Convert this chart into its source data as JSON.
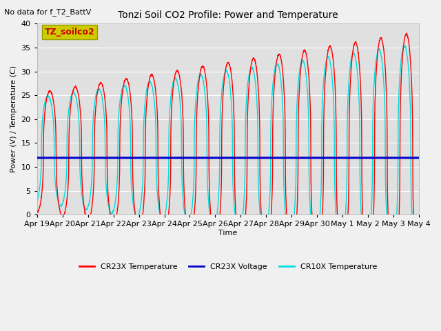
{
  "title": "Tonzi Soil CO2 Profile: Power and Temperature",
  "subtitle": "No data for f_T2_BattV",
  "ylabel": "Power (V) / Temperature (C)",
  "xlabel": "Time",
  "ylim": [
    0,
    40
  ],
  "x_tick_labels": [
    "Apr 19",
    "Apr 20",
    "Apr 21",
    "Apr 22",
    "Apr 23",
    "Apr 24",
    "Apr 25",
    "Apr 26",
    "Apr 27",
    "Apr 28",
    "Apr 29",
    "Apr 30",
    "May 1",
    "May 2",
    "May 3",
    "May 4"
  ],
  "legend_labels": [
    "CR23X Temperature",
    "CR23X Voltage",
    "CR10X Temperature"
  ],
  "annotation_box": "TZ_soilco2",
  "voltage_level": 11.9,
  "fig_bg": "#f0f0f0",
  "plot_bg": "#e0e0e0",
  "red_color": "#ff0000",
  "blue_color": "#0000cc",
  "cyan_color": "#00dddd",
  "grid_color": "#ffffff",
  "annotation_fg": "#cc0000",
  "annotation_bg": "#cccc00"
}
